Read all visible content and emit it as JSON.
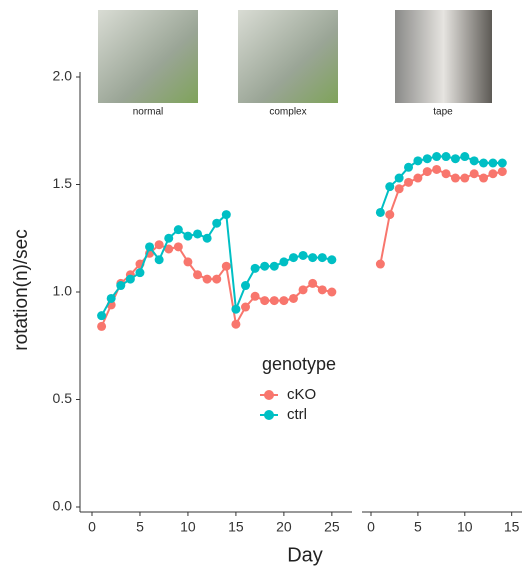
{
  "chart_data": [
    {
      "type": "line",
      "y_label": "rotation(n)/sec",
      "x_label": "Day",
      "legend_title": "genotype",
      "annotations": [
        "normal",
        "complex"
      ],
      "x": [
        1,
        2,
        3,
        4,
        5,
        6,
        7,
        8,
        9,
        10,
        11,
        12,
        13,
        14,
        15,
        16,
        17,
        18,
        19,
        20,
        21,
        22,
        23,
        24,
        25
      ],
      "xlim": [
        -1.25,
        27.1
      ],
      "xticks": [
        0,
        5,
        10,
        15,
        20,
        25
      ],
      "ylim": [
        0,
        2
      ],
      "yticks": [
        {
          "value": 0,
          "label": "0.0"
        },
        {
          "value": 0.5,
          "label": "0.5"
        },
        {
          "value": 1,
          "label": "1.0"
        },
        {
          "value": 1.5,
          "label": "1.5"
        },
        {
          "value": 2,
          "label": "2.0"
        }
      ],
      "series": [
        {
          "name": "cKO",
          "color": "#F8766D",
          "values": [
            0.84,
            0.94,
            1.04,
            1.08,
            1.13,
            1.18,
            1.22,
            1.2,
            1.21,
            1.14,
            1.08,
            1.06,
            1.06,
            1.12,
            0.85,
            0.93,
            0.98,
            0.96,
            0.96,
            0.96,
            0.97,
            1.01,
            1.04,
            1.01,
            1.0
          ]
        },
        {
          "name": "ctrl",
          "color": "#00BFC4",
          "values": [
            0.89,
            0.97,
            1.03,
            1.06,
            1.09,
            1.21,
            1.15,
            1.25,
            1.29,
            1.26,
            1.27,
            1.25,
            1.32,
            1.36,
            0.92,
            1.03,
            1.11,
            1.12,
            1.12,
            1.14,
            1.16,
            1.17,
            1.16,
            1.16,
            1.15
          ]
        }
      ]
    },
    {
      "type": "line",
      "annotations": [
        "tape"
      ],
      "x": [
        1,
        2,
        3,
        4,
        5,
        6,
        7,
        8,
        9,
        10,
        11,
        12,
        13,
        14
      ],
      "xlim": [
        -0.96,
        16.1
      ],
      "xticks": [
        0,
        5,
        10,
        15
      ],
      "ylim": [
        0,
        2
      ],
      "series": [
        {
          "name": "cKO",
          "color": "#F8766D",
          "values": [
            1.13,
            1.36,
            1.48,
            1.51,
            1.53,
            1.56,
            1.57,
            1.55,
            1.53,
            1.53,
            1.55,
            1.53,
            1.55,
            1.56
          ]
        },
        {
          "name": "ctrl",
          "color": "#00BFC4",
          "values": [
            1.37,
            1.49,
            1.53,
            1.58,
            1.61,
            1.62,
            1.63,
            1.63,
            1.62,
            1.63,
            1.61,
            1.6,
            1.6,
            1.6
          ]
        }
      ]
    }
  ]
}
